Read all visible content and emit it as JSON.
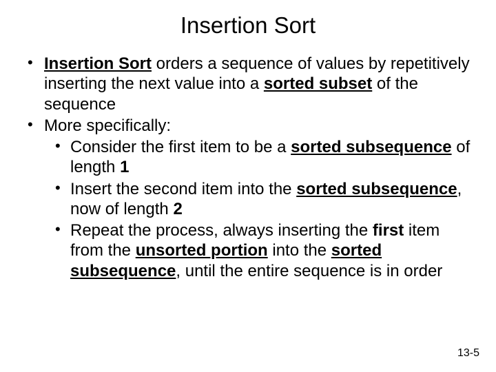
{
  "title": "Insertion Sort",
  "bullets": {
    "b1": {
      "s1": "Insertion Sort",
      "s2": " orders a sequence of values by repetitively inserting the next value into a ",
      "s3": "sorted subset",
      "s4": " of the sequence"
    },
    "b2": "More specifically:",
    "sub": {
      "c1": {
        "s1": "Consider the first item to be a ",
        "s2": "sorted subsequence",
        "s3": " of length ",
        "s4": "1"
      },
      "c2": {
        "s1": "Insert the second item into the ",
        "s2": "sorted subsequence",
        "s3": ", now of length ",
        "s4": "2"
      },
      "c3": {
        "s1": "Repeat the process, always inserting the ",
        "s2": "first",
        "s3": " item from the ",
        "s4": "unsorted portion",
        "s5": " into the ",
        "s6": "sorted subsequence",
        "s7": ", until the entire sequence is in order"
      }
    }
  },
  "pageNumber": "13-5",
  "colors": {
    "text": "#000000",
    "background": "#ffffff"
  },
  "typography": {
    "title_fontsize": 33,
    "body_fontsize": 24,
    "pagenum_fontsize": 16,
    "font_family": "Arial"
  }
}
